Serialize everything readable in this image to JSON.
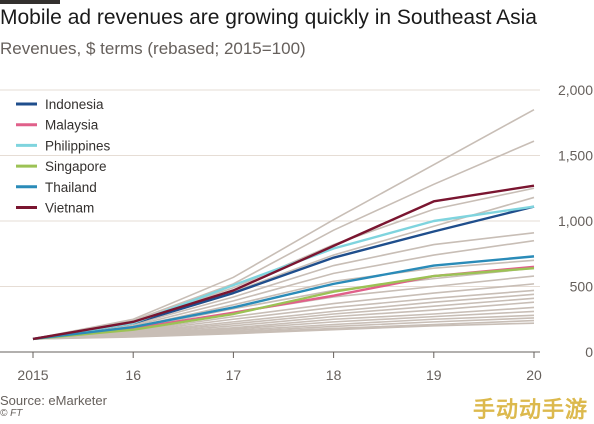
{
  "header": {
    "title": "Mobile ad revenues are growing quickly in Southeast Asia",
    "subtitle": "Revenues, $ terms (rebased; 2015=100)"
  },
  "footer": {
    "source": "Source: eMarketer",
    "credit": "© FT"
  },
  "watermark": "手动动手游",
  "chart_data": {
    "type": "line",
    "x": [
      "2015",
      "16",
      "17",
      "18",
      "19",
      "20"
    ],
    "ylim": [
      0,
      2000
    ],
    "yticks": [
      0,
      500,
      1000,
      1500,
      2000
    ],
    "ytick_labels": [
      "0",
      "500",
      "1,000",
      "1,500",
      "2,000"
    ],
    "grid": true,
    "legend_position": "top-left",
    "series": [
      {
        "name": "Indonesia",
        "color": "#1f4e8c",
        "values": [
          100,
          220,
          450,
          720,
          920,
          1110
        ]
      },
      {
        "name": "Malaysia",
        "color": "#e0608a",
        "values": [
          100,
          180,
          300,
          430,
          580,
          650
        ]
      },
      {
        "name": "Philippines",
        "color": "#7fd4de",
        "values": [
          100,
          220,
          510,
          790,
          1000,
          1110
        ]
      },
      {
        "name": "Singapore",
        "color": "#9cc255",
        "values": [
          100,
          170,
          290,
          460,
          580,
          640
        ]
      },
      {
        "name": "Thailand",
        "color": "#2a8bb8",
        "values": [
          100,
          190,
          340,
          520,
          660,
          730
        ]
      },
      {
        "name": "Vietnam",
        "color": "#7a1530",
        "values": [
          100,
          230,
          470,
          810,
          1150,
          1270
        ]
      }
    ],
    "background_series": {
      "color": "#c8beb6",
      "lines": [
        [
          100,
          250,
          570,
          1010,
          1430,
          1850
        ],
        [
          100,
          240,
          520,
          930,
          1280,
          1610
        ],
        [
          100,
          230,
          490,
          820,
          1090,
          1250
        ],
        [
          100,
          220,
          460,
          740,
          960,
          1180
        ],
        [
          100,
          210,
          420,
          660,
          820,
          910
        ],
        [
          100,
          200,
          390,
          600,
          740,
          850
        ],
        [
          100,
          190,
          360,
          540,
          640,
          700
        ],
        [
          100,
          180,
          330,
          470,
          560,
          640
        ],
        [
          100,
          170,
          300,
          420,
          500,
          580
        ],
        [
          100,
          160,
          270,
          370,
          450,
          520
        ],
        [
          100,
          155,
          250,
          340,
          410,
          470
        ],
        [
          100,
          150,
          230,
          310,
          380,
          440
        ],
        [
          100,
          145,
          215,
          290,
          350,
          410
        ],
        [
          100,
          140,
          200,
          270,
          320,
          380
        ],
        [
          100,
          135,
          185,
          250,
          290,
          340
        ],
        [
          100,
          130,
          175,
          230,
          270,
          310
        ],
        [
          100,
          125,
          165,
          210,
          250,
          280
        ],
        [
          100,
          120,
          155,
          195,
          230,
          260
        ],
        [
          100,
          118,
          148,
          180,
          210,
          240
        ],
        [
          100,
          115,
          140,
          170,
          200,
          220
        ]
      ]
    }
  }
}
